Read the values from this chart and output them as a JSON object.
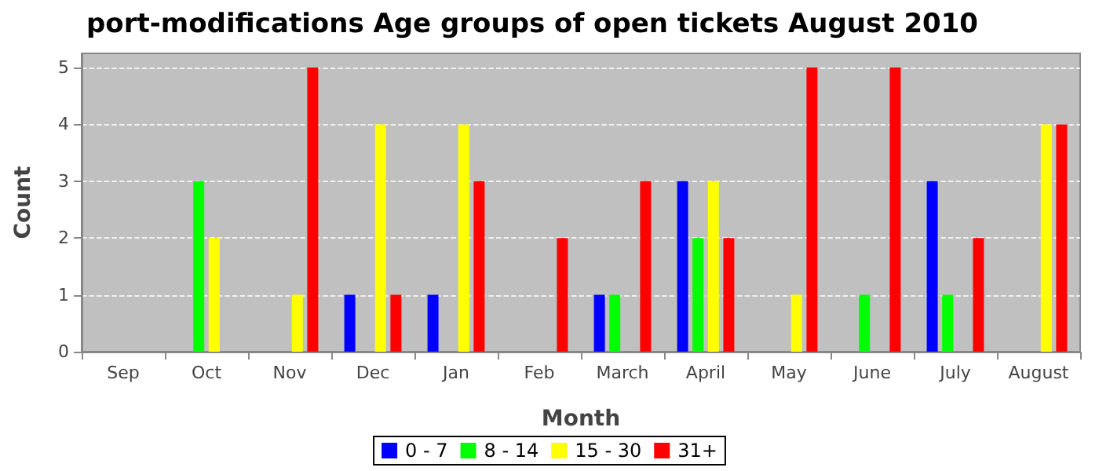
{
  "chart_data": {
    "type": "bar",
    "title": "port-modifications Age groups of open tickets August 2010",
    "xlabel": "Month",
    "ylabel": "Count",
    "categories": [
      "Sep",
      "Oct",
      "Nov",
      "Dec",
      "Jan",
      "Feb",
      "March",
      "April",
      "May",
      "June",
      "July",
      "August"
    ],
    "series": [
      {
        "name": "0 - 7",
        "color": "#0000ff",
        "values": [
          0,
          0,
          0,
          1,
          1,
          0,
          1,
          3,
          0,
          0,
          3,
          0
        ]
      },
      {
        "name": "8 - 14",
        "color": "#00ff00",
        "values": [
          0,
          3,
          0,
          0,
          0,
          0,
          1,
          2,
          0,
          1,
          1,
          0
        ]
      },
      {
        "name": "15 - 30",
        "color": "#ffff00",
        "values": [
          0,
          2,
          1,
          4,
          4,
          0,
          0,
          3,
          1,
          0,
          0,
          4
        ]
      },
      {
        "name": "31+",
        "color": "#ff0000",
        "values": [
          0,
          0,
          5,
          1,
          3,
          2,
          3,
          2,
          5,
          5,
          2,
          4
        ]
      }
    ],
    "ylim": [
      0,
      5.25
    ],
    "yticks": [
      0,
      1,
      2,
      3,
      4,
      5
    ],
    "grid": "y",
    "legend": "bottom"
  }
}
